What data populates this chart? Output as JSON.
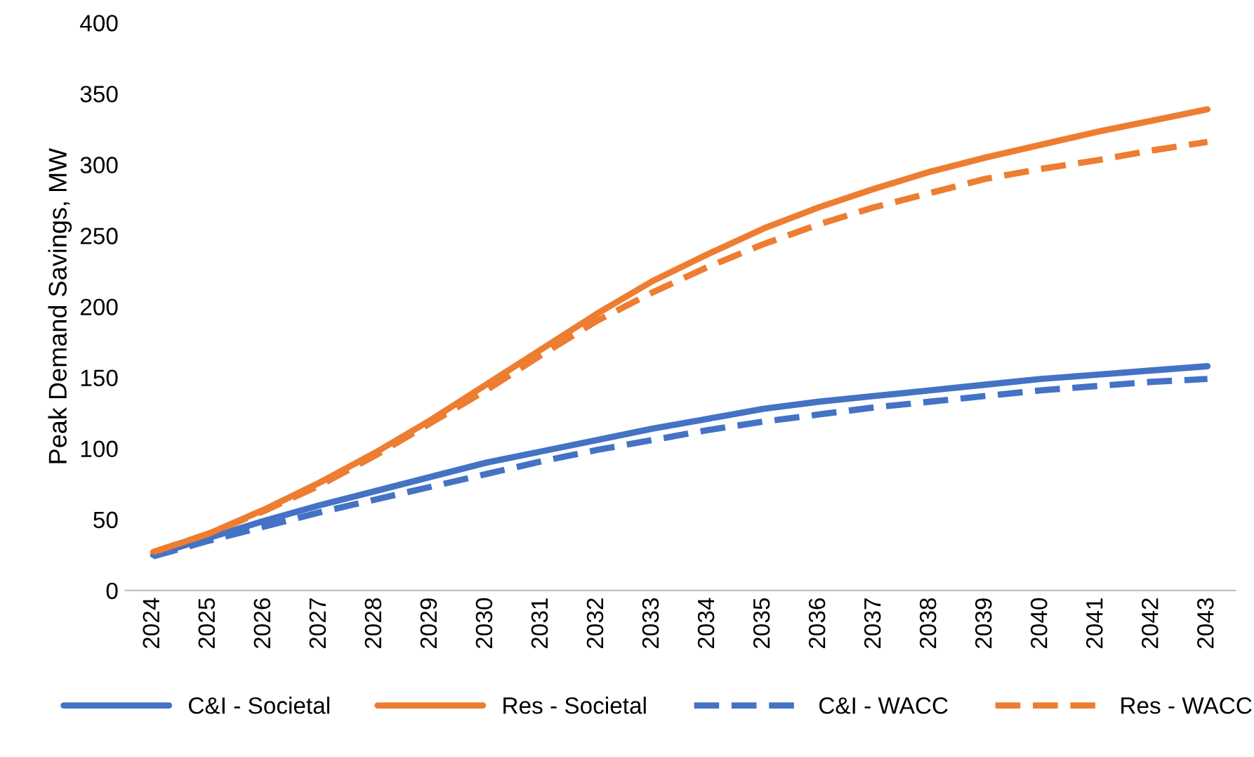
{
  "chart_data": {
    "type": "line",
    "ylabel": "Peak Demand Savings, MW",
    "categories": [
      "2024",
      "2025",
      "2026",
      "2027",
      "2028",
      "2029",
      "2030",
      "2031",
      "2032",
      "2033",
      "2034",
      "2035",
      "2036",
      "2037",
      "2038",
      "2039",
      "2040",
      "2041",
      "2042",
      "2043"
    ],
    "series": [
      {
        "name": "C&I - Societal",
        "color": "#4472c4",
        "line_style": "solid",
        "values": [
          25,
          37,
          49,
          60,
          70,
          80,
          90,
          98,
          106,
          114,
          121,
          128,
          133,
          137,
          141,
          145,
          149,
          152,
          155,
          158
        ]
      },
      {
        "name": "Res - Societal",
        "color": "#ed7d31",
        "line_style": "solid",
        "values": [
          27,
          40,
          57,
          76,
          97,
          120,
          145,
          170,
          195,
          218,
          237,
          255,
          270,
          283,
          295,
          305,
          314,
          323,
          331,
          339
        ]
      },
      {
        "name": "C&I - WACC",
        "color": "#4472c4",
        "line_style": "dashed",
        "values": [
          24,
          35,
          45,
          55,
          64,
          73,
          82,
          91,
          99,
          106,
          113,
          119,
          124,
          129,
          133,
          137,
          141,
          144,
          147,
          149
        ]
      },
      {
        "name": "Res - WACC",
        "color": "#ed7d31",
        "line_style": "dashed",
        "values": [
          27,
          40,
          56,
          74,
          95,
          118,
          141,
          166,
          190,
          210,
          228,
          244,
          258,
          270,
          280,
          290,
          297,
          303,
          310,
          316
        ]
      }
    ],
    "ylim": [
      0,
      400
    ],
    "yticks": [
      0,
      50,
      100,
      150,
      200,
      250,
      300,
      350,
      400
    ],
    "grid": false,
    "legend": "bottom",
    "marker": "none"
  }
}
